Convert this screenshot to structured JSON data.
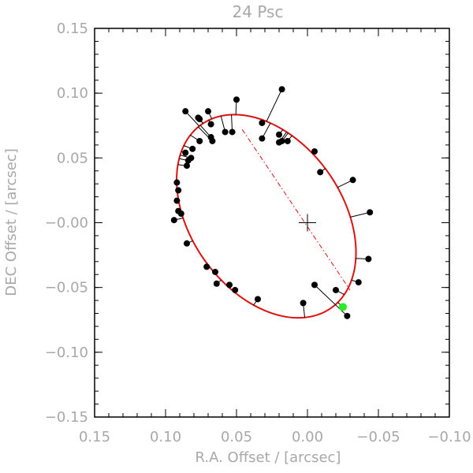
{
  "chart_data": {
    "type": "scatter",
    "title": "24 Psc",
    "xlabel": "R.A. Offset / [arcsec]",
    "ylabel": "DEC Offset / [arcsec]",
    "xlim": [
      0.15,
      -0.1
    ],
    "ylim": [
      -0.15,
      0.15
    ],
    "grid": false,
    "x_ticks": [
      0.15,
      0.1,
      0.05,
      0.0,
      -0.05,
      -0.1
    ],
    "x_tick_labels": [
      "0.15",
      "0.10",
      "0.05",
      "0.00",
      "−0.05",
      "−0.10"
    ],
    "y_ticks": [
      0.15,
      0.1,
      0.05,
      0.0,
      -0.05,
      -0.1,
      -0.15
    ],
    "y_tick_labels": [
      "0.15",
      "0.10",
      "0.05",
      "−0.00",
      "−0.05",
      "−0.10",
      "−0.15"
    ],
    "center_marker": {
      "x": 0.0,
      "y": 0.0,
      "symbol": "plus"
    },
    "orbit": {
      "color": "#dd1111",
      "center": [
        0.029,
        0.005
      ],
      "semi_major": 0.0845,
      "semi_minor": 0.0548,
      "tilt_deg": 60.7
    },
    "line_of_nodes": {
      "color": "#dd1111",
      "style": "dash-dot",
      "from": [
        0.046,
        0.072
      ],
      "to": [
        -0.03,
        -0.052
      ]
    },
    "highlight_point": {
      "x": -0.025,
      "y": -0.065,
      "color": "#22ee22"
    },
    "points_color": "#000000",
    "observations": [
      {
        "x": 0.086,
        "y": 0.086
      },
      {
        "x": 0.07,
        "y": 0.086
      },
      {
        "x": 0.076,
        "y": 0.08
      },
      {
        "x": 0.077,
        "y": 0.081
      },
      {
        "x": 0.068,
        "y": 0.076
      },
      {
        "x": 0.053,
        "y": 0.07
      },
      {
        "x": 0.05,
        "y": 0.095
      },
      {
        "x": 0.032,
        "y": 0.065
      },
      {
        "x": 0.032,
        "y": 0.077
      },
      {
        "x": 0.018,
        "y": 0.103
      },
      {
        "x": 0.02,
        "y": 0.068
      },
      {
        "x": 0.018,
        "y": 0.063
      },
      {
        "x": 0.02,
        "y": 0.062
      },
      {
        "x": 0.014,
        "y": 0.063
      },
      {
        "x": -0.005,
        "y": 0.055
      },
      {
        "x": -0.009,
        "y": 0.039
      },
      {
        "x": -0.032,
        "y": 0.033
      },
      {
        "x": -0.044,
        "y": 0.008
      },
      {
        "x": -0.043,
        "y": -0.028
      },
      {
        "x": -0.036,
        "y": -0.046
      },
      {
        "x": -0.02,
        "y": -0.052
      },
      {
        "x": -0.028,
        "y": -0.072
      },
      {
        "x": -0.005,
        "y": -0.048
      },
      {
        "x": 0.003,
        "y": -0.062
      },
      {
        "x": 0.035,
        "y": -0.059
      },
      {
        "x": 0.051,
        "y": -0.052
      },
      {
        "x": 0.055,
        "y": -0.048
      },
      {
        "x": 0.064,
        "y": -0.047
      },
      {
        "x": 0.065,
        "y": -0.038
      },
      {
        "x": 0.071,
        "y": -0.034
      },
      {
        "x": 0.085,
        "y": -0.016
      },
      {
        "x": 0.094,
        "y": 0.002
      },
      {
        "x": 0.089,
        "y": 0.007
      },
      {
        "x": 0.091,
        "y": 0.009
      },
      {
        "x": 0.092,
        "y": 0.017
      },
      {
        "x": 0.091,
        "y": 0.025
      },
      {
        "x": 0.092,
        "y": 0.031
      },
      {
        "x": 0.085,
        "y": 0.044
      },
      {
        "x": 0.084,
        "y": 0.048
      },
      {
        "x": 0.082,
        "y": 0.05
      },
      {
        "x": 0.086,
        "y": 0.054
      },
      {
        "x": 0.081,
        "y": 0.057
      },
      {
        "x": 0.076,
        "y": 0.063
      },
      {
        "x": 0.067,
        "y": 0.063
      },
      {
        "x": 0.068,
        "y": 0.066
      },
      {
        "x": 0.058,
        "y": 0.07
      }
    ]
  }
}
